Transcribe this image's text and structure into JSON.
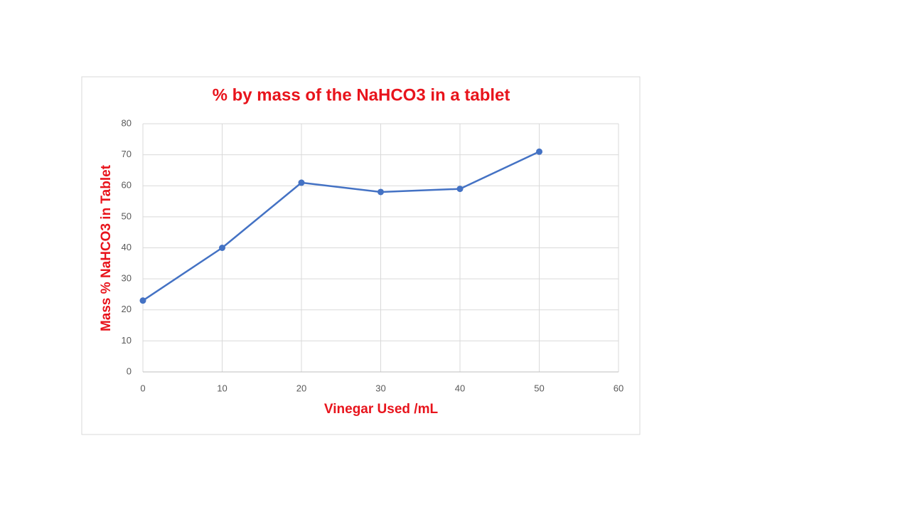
{
  "chart_data": {
    "type": "line",
    "title": "% by mass of the NaHCO3 in a tablet",
    "x_label": "Vinegar Used /mL",
    "y_label": "Mass % NaHCO3 in Tablet",
    "x": [
      0,
      10,
      20,
      30,
      40,
      50
    ],
    "values": [
      23,
      40,
      61,
      58,
      59,
      71
    ],
    "color": "#4472c4",
    "xlim": [
      0,
      60
    ],
    "xticks": [
      0,
      10,
      20,
      30,
      40,
      50,
      60
    ],
    "ylim": [
      0,
      80
    ],
    "yticks": [
      0,
      10,
      20,
      30,
      40,
      50,
      60,
      70,
      80
    ],
    "grid": true
  }
}
